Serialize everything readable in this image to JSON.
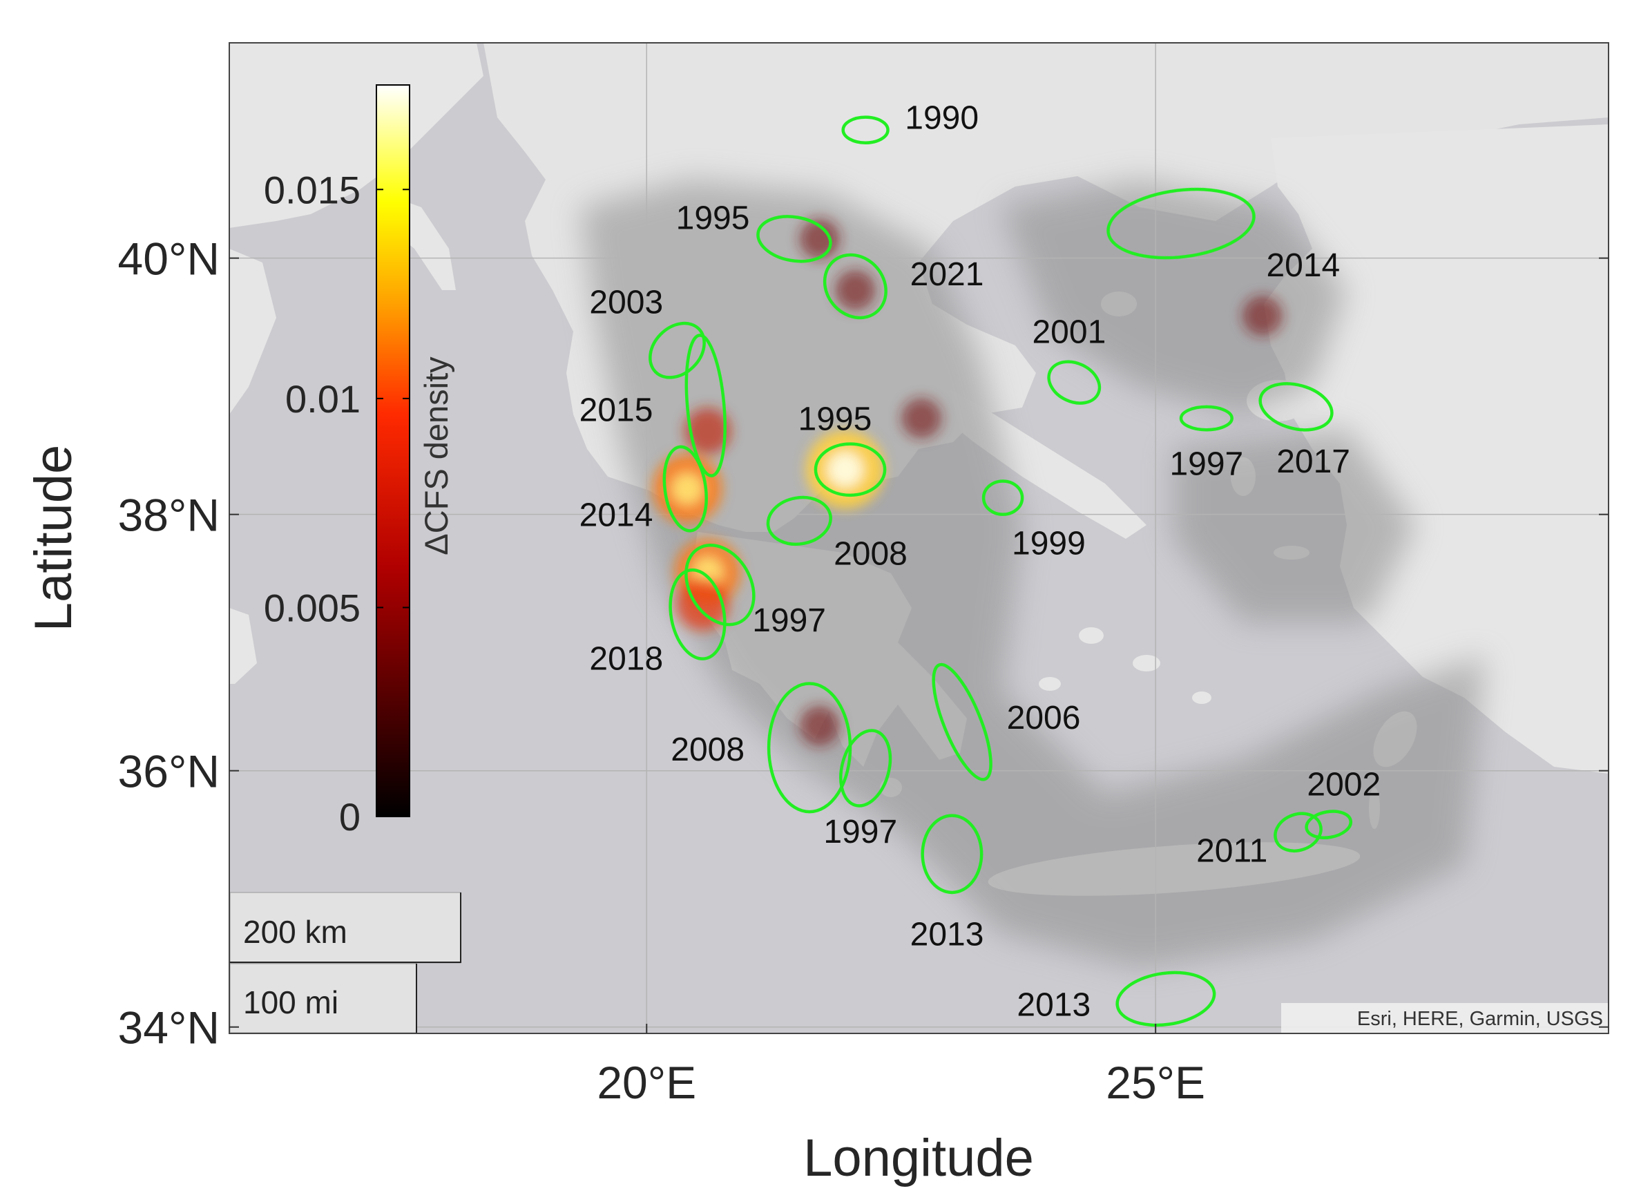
{
  "figure": {
    "xlabel": "Longitude",
    "ylabel": "Latitude",
    "xticks": [
      {
        "value": 20,
        "label": "20°E"
      },
      {
        "value": 25,
        "label": "25°E"
      }
    ],
    "yticks": [
      {
        "value": 34,
        "label": "34°N"
      },
      {
        "value": 36,
        "label": "36°N"
      },
      {
        "value": 38,
        "label": "38°N"
      },
      {
        "value": 40,
        "label": "40°N"
      }
    ],
    "lon_range": [
      15.9,
      29.45
    ],
    "lat_range": [
      33.95,
      41.68
    ],
    "attribution": "Esri, HERE, Garmin, USGS",
    "scalebar": {
      "km": "200 km",
      "mi": "100 mi"
    },
    "colors": {
      "contour": "#22ee22",
      "water": "#cbcbd0",
      "land": "#e8e8e8",
      "grid": "#b4b4b4"
    }
  },
  "colorbar": {
    "label": "ΔCFS density",
    "colormap": "hot",
    "range": [
      0,
      0.0175
    ],
    "ticks": [
      {
        "value": 0,
        "label": "0"
      },
      {
        "value": 0.005,
        "label": "0.005"
      },
      {
        "value": 0.01,
        "label": "0.01"
      },
      {
        "value": 0.015,
        "label": "0.015"
      }
    ]
  },
  "chart_data": {
    "type": "heatmap",
    "projection": "geographic",
    "xlabel": "Longitude",
    "ylabel": "Latitude",
    "xlim": [
      15.9,
      29.45
    ],
    "ylim": [
      33.95,
      41.68
    ],
    "colorbar_label": "ΔCFS density",
    "colorbar_range": [
      0,
      0.0175
    ],
    "hotspots": [
      {
        "lon": 21.95,
        "lat": 38.35,
        "value": 0.016
      },
      {
        "lon": 20.4,
        "lat": 38.2,
        "value": 0.013
      },
      {
        "lon": 20.6,
        "lat": 37.55,
        "value": 0.012
      },
      {
        "lon": 20.55,
        "lat": 37.3,
        "value": 0.008
      },
      {
        "lon": 20.6,
        "lat": 38.65,
        "value": 0.006
      },
      {
        "lon": 21.7,
        "lat": 36.35,
        "value": 0.004
      },
      {
        "lon": 22.7,
        "lat": 38.75,
        "value": 0.004
      },
      {
        "lon": 21.7,
        "lat": 40.15,
        "value": 0.004
      },
      {
        "lon": 22.05,
        "lat": 39.75,
        "value": 0.004
      },
      {
        "lon": 26.05,
        "lat": 39.55,
        "value": 0.004
      }
    ],
    "contours": [
      {
        "label": "1990",
        "lon": 22.15,
        "lat": 41.0,
        "rx": 0.22,
        "ry": 0.1,
        "rot": 0,
        "label_lon": 22.9,
        "label_lat": 41.1
      },
      {
        "label": "1995",
        "lon": 21.45,
        "lat": 40.15,
        "rx": 0.36,
        "ry": 0.17,
        "rot": 10,
        "label_lon": 20.65,
        "label_lat": 40.32
      },
      {
        "label": "2021",
        "lon": 22.05,
        "lat": 39.78,
        "rx": 0.28,
        "ry": 0.26,
        "rot": -40,
        "label_lon": 22.95,
        "label_lat": 39.88
      },
      {
        "label": "2014",
        "lon": 25.25,
        "lat": 40.27,
        "rx": 0.72,
        "ry": 0.26,
        "rot": -7,
        "label_lon": 26.45,
        "label_lat": 39.95
      },
      {
        "label": "2003",
        "lon": 20.3,
        "lat": 39.28,
        "rx": 0.3,
        "ry": 0.18,
        "rot": -45,
        "label_lon": 19.8,
        "label_lat": 39.66
      },
      {
        "label": "2001",
        "lon": 24.2,
        "lat": 39.03,
        "rx": 0.26,
        "ry": 0.15,
        "rot": 25,
        "label_lon": 24.15,
        "label_lat": 39.43
      },
      {
        "label": "2015",
        "lon": 20.58,
        "lat": 38.85,
        "rx": 0.18,
        "ry": 0.55,
        "rot": -5,
        "label_lon": 19.7,
        "label_lat": 38.82
      },
      {
        "label": "1997",
        "lon": 25.5,
        "lat": 38.75,
        "rx": 0.25,
        "ry": 0.09,
        "rot": 0,
        "label_lon": 25.5,
        "label_lat": 38.4
      },
      {
        "label": "2017",
        "lon": 26.38,
        "lat": 38.84,
        "rx": 0.36,
        "ry": 0.17,
        "rot": 15,
        "label_lon": 26.55,
        "label_lat": 38.42
      },
      {
        "label": "1995",
        "lon": 22.0,
        "lat": 38.35,
        "rx": 0.34,
        "ry": 0.2,
        "rot": 0,
        "label_lon": 21.85,
        "label_lat": 38.75
      },
      {
        "label": "2014",
        "lon": 20.38,
        "lat": 38.2,
        "rx": 0.2,
        "ry": 0.33,
        "rot": -8,
        "label_lon": 19.7,
        "label_lat": 38.0
      },
      {
        "label": "1999",
        "lon": 23.5,
        "lat": 38.13,
        "rx": 0.19,
        "ry": 0.13,
        "rot": 0,
        "label_lon": 23.95,
        "label_lat": 37.78
      },
      {
        "label": "2008",
        "lon": 21.5,
        "lat": 37.95,
        "rx": 0.31,
        "ry": 0.18,
        "rot": -10,
        "label_lon": 22.2,
        "label_lat": 37.7
      },
      {
        "label": "1997",
        "lon": 20.72,
        "lat": 37.45,
        "rx": 0.3,
        "ry": 0.33,
        "rot": -30,
        "label_lon": 21.4,
        "label_lat": 37.18
      },
      {
        "label": "2018",
        "lon": 20.5,
        "lat": 37.22,
        "rx": 0.26,
        "ry": 0.35,
        "rot": -10,
        "label_lon": 19.8,
        "label_lat": 36.88
      },
      {
        "label": "2006",
        "lon": 23.1,
        "lat": 36.38,
        "rx": 0.18,
        "ry": 0.48,
        "rot": -22,
        "label_lon": 23.9,
        "label_lat": 36.42
      },
      {
        "label": "2008",
        "lon": 21.6,
        "lat": 36.18,
        "rx": 0.4,
        "ry": 0.5,
        "rot": 0,
        "label_lon": 20.6,
        "label_lat": 36.17
      },
      {
        "label": "1997",
        "lon": 22.15,
        "lat": 36.02,
        "rx": 0.23,
        "ry": 0.3,
        "rot": 15,
        "label_lon": 22.1,
        "label_lat": 35.53
      },
      {
        "label": "2002",
        "lon": 26.7,
        "lat": 35.58,
        "rx": 0.22,
        "ry": 0.1,
        "rot": -10,
        "label_lon": 26.85,
        "label_lat": 35.9
      },
      {
        "label": "2011",
        "lon": 26.4,
        "lat": 35.52,
        "rx": 0.23,
        "ry": 0.14,
        "rot": -20,
        "label_lon": 25.75,
        "label_lat": 35.38
      },
      {
        "label": "2013",
        "lon": 23.0,
        "lat": 35.35,
        "rx": 0.29,
        "ry": 0.3,
        "rot": 0,
        "label_lon": 22.95,
        "label_lat": 34.73
      },
      {
        "label": "2013",
        "lon": 25.1,
        "lat": 34.22,
        "rx": 0.48,
        "ry": 0.2,
        "rot": -8,
        "label_lon": 24.0,
        "label_lat": 34.18
      }
    ]
  }
}
